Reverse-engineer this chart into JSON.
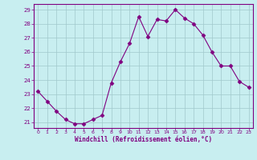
{
  "x": [
    0,
    1,
    2,
    3,
    4,
    5,
    6,
    7,
    8,
    9,
    10,
    11,
    12,
    13,
    14,
    15,
    16,
    17,
    18,
    19,
    20,
    21,
    22,
    23
  ],
  "y": [
    23.2,
    22.5,
    21.8,
    21.2,
    20.9,
    20.9,
    21.2,
    21.5,
    23.8,
    25.3,
    26.6,
    28.5,
    27.1,
    28.3,
    28.2,
    29.0,
    28.4,
    28.0,
    27.2,
    26.0,
    25.0,
    25.0,
    23.9,
    23.5
  ],
  "line_color": "#800080",
  "marker": "D",
  "marker_size": 2.5,
  "bg_color": "#c8eef0",
  "grid_color": "#a0c8cc",
  "xlabel": "Windchill (Refroidissement éolien,°C)",
  "xlabel_color": "#800080",
  "yticks": [
    21,
    22,
    23,
    24,
    25,
    26,
    27,
    28,
    29
  ],
  "xticks": [
    0,
    1,
    2,
    3,
    4,
    5,
    6,
    7,
    8,
    9,
    10,
    11,
    12,
    13,
    14,
    15,
    16,
    17,
    18,
    19,
    20,
    21,
    22,
    23
  ],
  "ylim": [
    20.6,
    29.4
  ],
  "xlim": [
    -0.5,
    23.5
  ]
}
